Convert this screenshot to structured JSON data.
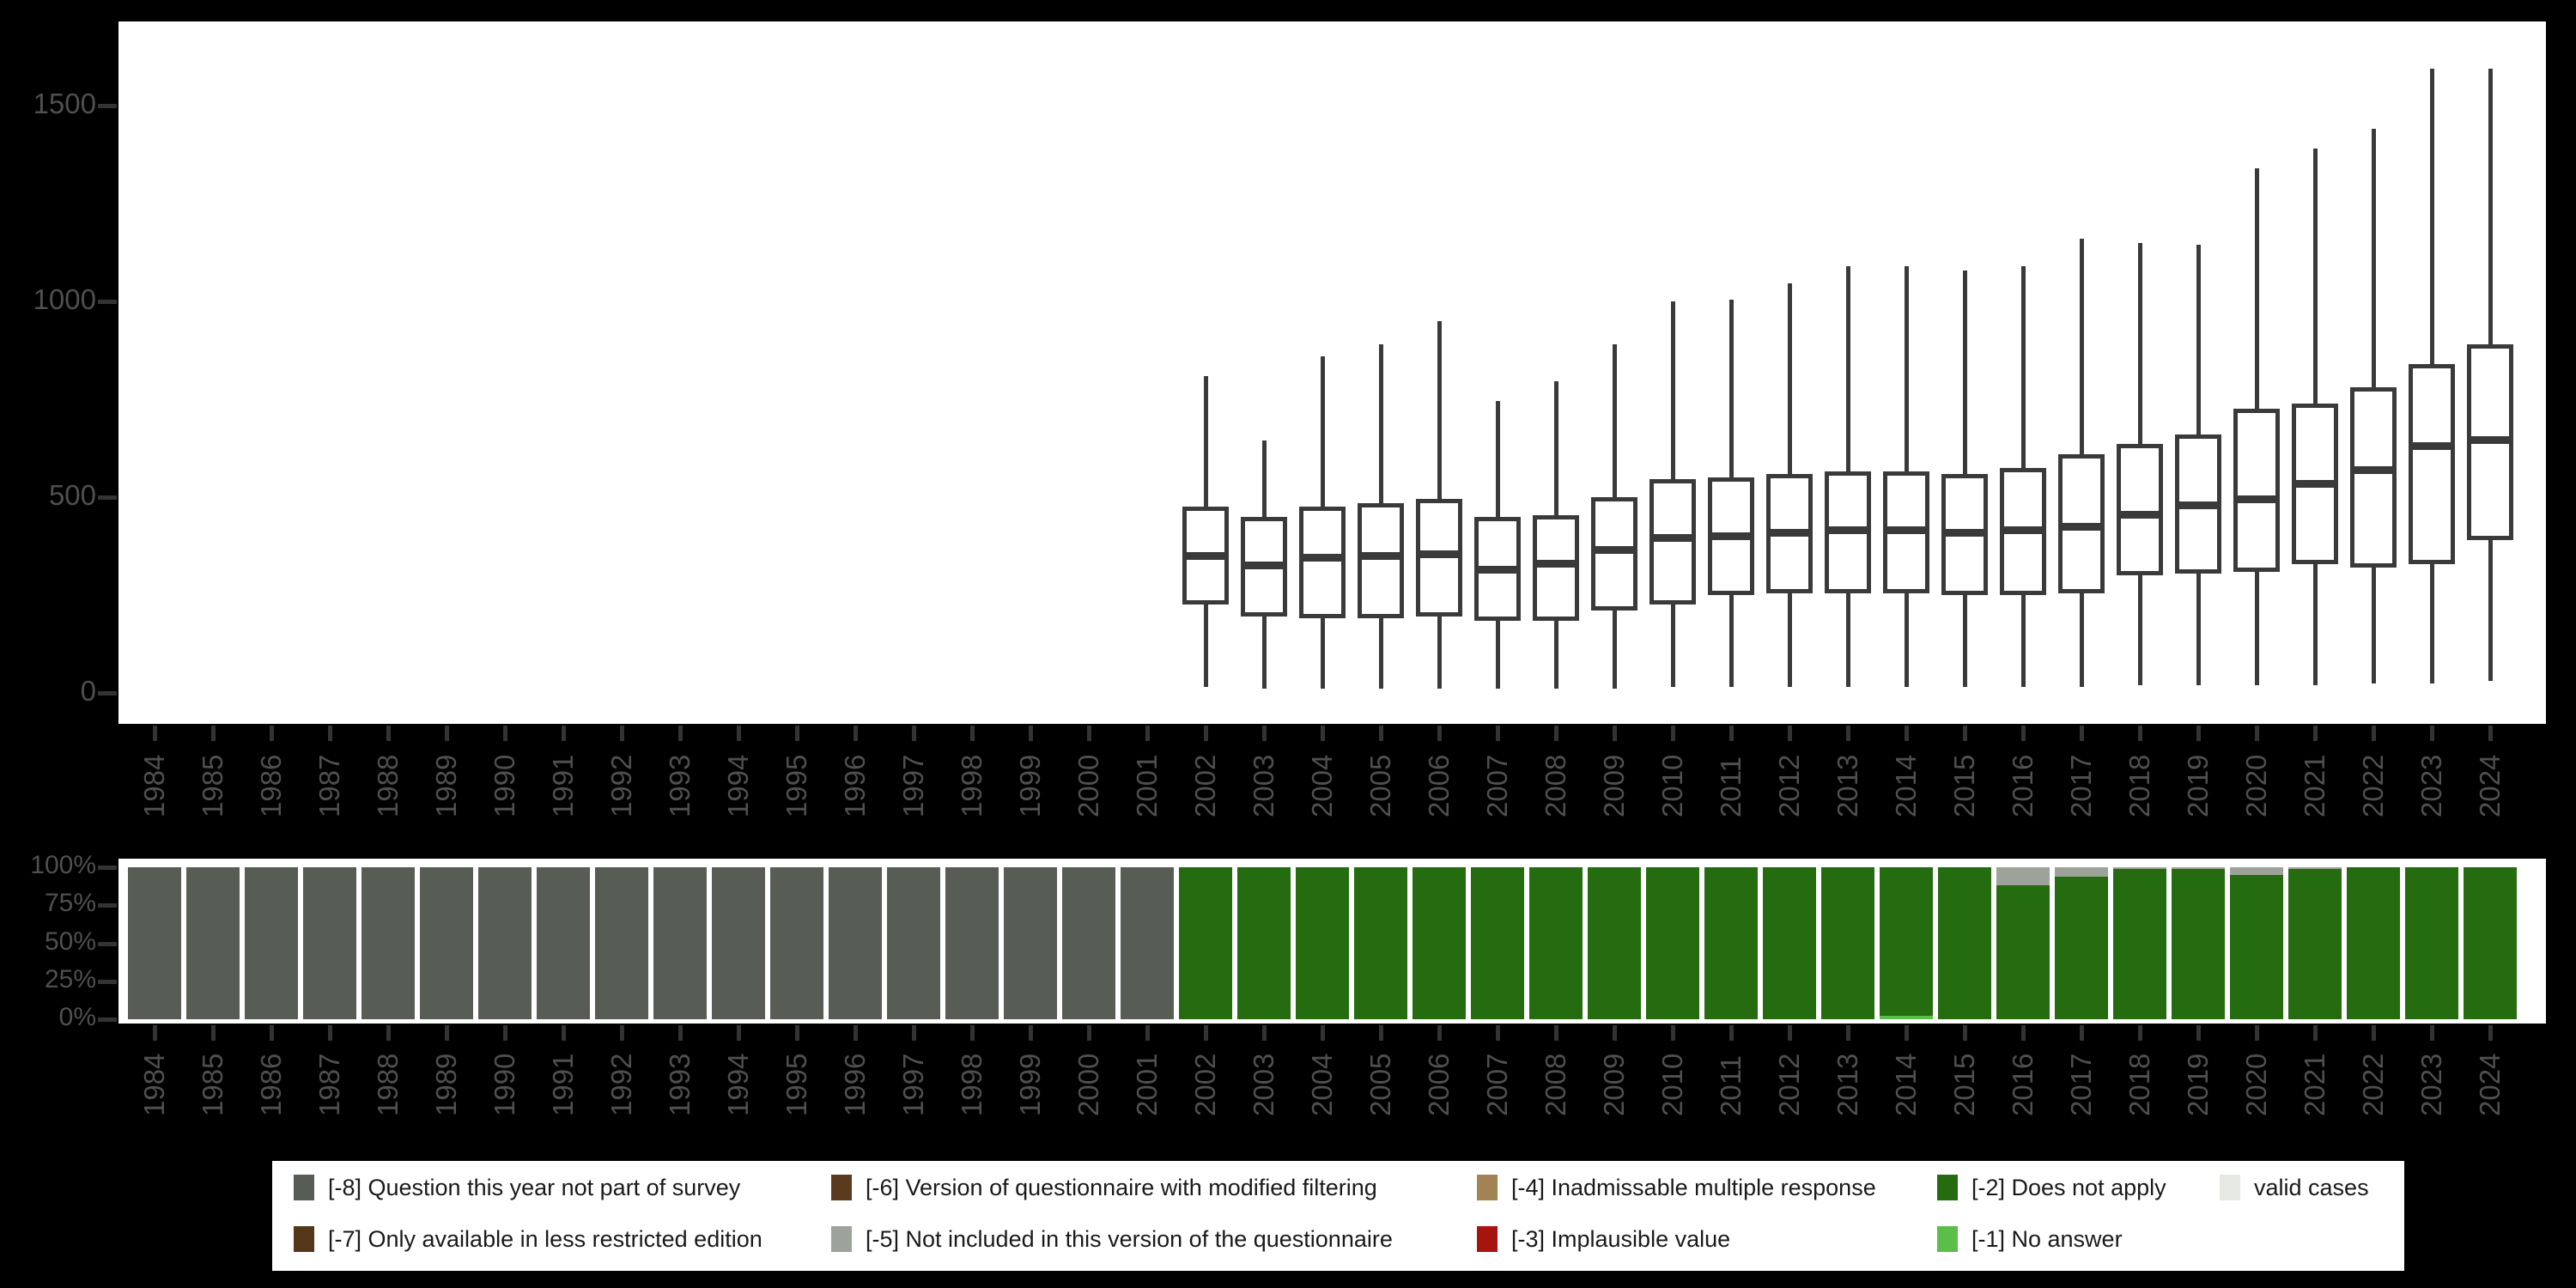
{
  "colors": {
    "background": "#000000",
    "plot_background": "#ffffff",
    "box_stroke": "#3a3a3a",
    "axis_text": "#4f4f4f",
    "tick_mark": "#333333",
    "legend_background": "#ffffff",
    "legend_text": "#1a1a1a"
  },
  "chart_data": [
    {
      "type": "boxplot",
      "title": "",
      "xlabel": "",
      "ylabel": "",
      "grid": false,
      "categories": [
        "1984",
        "1985",
        "1986",
        "1987",
        "1988",
        "1989",
        "1990",
        "1991",
        "1992",
        "1993",
        "1994",
        "1995",
        "1996",
        "1997",
        "1998",
        "1999",
        "2000",
        "2001",
        "2002",
        "2003",
        "2004",
        "2005",
        "2006",
        "2007",
        "2008",
        "2009",
        "2010",
        "2011",
        "2012",
        "2013",
        "2014",
        "2015",
        "2016",
        "2017",
        "2018",
        "2019",
        "2020",
        "2021",
        "2022",
        "2023",
        "2024"
      ],
      "yticks": [
        0,
        500,
        1000,
        1500
      ],
      "ylim": [
        -90,
        1700
      ],
      "boxes": [
        {
          "year": "2002",
          "low": 15,
          "q1": 225,
          "median": 350,
          "q3": 475,
          "high": 810
        },
        {
          "year": "2003",
          "low": 10,
          "q1": 195,
          "median": 325,
          "q3": 450,
          "high": 645
        },
        {
          "year": "2004",
          "low": 10,
          "q1": 190,
          "median": 345,
          "q3": 475,
          "high": 860
        },
        {
          "year": "2005",
          "low": 10,
          "q1": 190,
          "median": 350,
          "q3": 485,
          "high": 890
        },
        {
          "year": "2006",
          "low": 10,
          "q1": 195,
          "median": 355,
          "q3": 495,
          "high": 950
        },
        {
          "year": "2007",
          "low": 10,
          "q1": 185,
          "median": 315,
          "q3": 450,
          "high": 745
        },
        {
          "year": "2008",
          "low": 10,
          "q1": 185,
          "median": 330,
          "q3": 455,
          "high": 795
        },
        {
          "year": "2009",
          "low": 10,
          "q1": 210,
          "median": 365,
          "q3": 500,
          "high": 890
        },
        {
          "year": "2010",
          "low": 15,
          "q1": 225,
          "median": 395,
          "q3": 545,
          "high": 1000
        },
        {
          "year": "2011",
          "low": 15,
          "q1": 250,
          "median": 400,
          "q3": 550,
          "high": 1005
        },
        {
          "year": "2012",
          "low": 15,
          "q1": 255,
          "median": 410,
          "q3": 560,
          "high": 1045
        },
        {
          "year": "2013",
          "low": 15,
          "q1": 255,
          "median": 415,
          "q3": 565,
          "high": 1090
        },
        {
          "year": "2014",
          "low": 15,
          "q1": 255,
          "median": 415,
          "q3": 565,
          "high": 1090
        },
        {
          "year": "2015",
          "low": 15,
          "q1": 250,
          "median": 410,
          "q3": 560,
          "high": 1080
        },
        {
          "year": "2016",
          "low": 15,
          "q1": 250,
          "median": 415,
          "q3": 575,
          "high": 1090
        },
        {
          "year": "2017",
          "low": 15,
          "q1": 255,
          "median": 425,
          "q3": 610,
          "high": 1160
        },
        {
          "year": "2018",
          "low": 20,
          "q1": 300,
          "median": 455,
          "q3": 635,
          "high": 1150
        },
        {
          "year": "2019",
          "low": 20,
          "q1": 305,
          "median": 480,
          "q3": 660,
          "high": 1145
        },
        {
          "year": "2020",
          "low": 20,
          "q1": 310,
          "median": 495,
          "q3": 725,
          "high": 1340
        },
        {
          "year": "2021",
          "low": 20,
          "q1": 330,
          "median": 535,
          "q3": 740,
          "high": 1390
        },
        {
          "year": "2022",
          "low": 25,
          "q1": 320,
          "median": 570,
          "q3": 780,
          "high": 1440
        },
        {
          "year": "2023",
          "low": 25,
          "q1": 330,
          "median": 630,
          "q3": 840,
          "high": 1595
        },
        {
          "year": "2024",
          "low": 30,
          "q1": 390,
          "median": 645,
          "q3": 890,
          "high": 1595
        }
      ]
    },
    {
      "type": "bar",
      "subtype": "stacked_percent",
      "title": "",
      "xlabel": "",
      "ylabel": "",
      "yticks": [
        "0%",
        "25%",
        "50%",
        "75%",
        "100%"
      ],
      "ylim": [
        0,
        100
      ],
      "categories": [
        "1984",
        "1985",
        "1986",
        "1987",
        "1988",
        "1989",
        "1990",
        "1991",
        "1992",
        "1993",
        "1994",
        "1995",
        "1996",
        "1997",
        "1998",
        "1999",
        "2000",
        "2001",
        "2002",
        "2003",
        "2004",
        "2005",
        "2006",
        "2007",
        "2008",
        "2009",
        "2010",
        "2011",
        "2012",
        "2013",
        "2014",
        "2015",
        "2016",
        "2017",
        "2018",
        "2019",
        "2020",
        "2021",
        "2022",
        "2023",
        "2024"
      ],
      "bars": [
        {
          "year": "1984",
          "segments": [
            [
              "-8",
              100
            ]
          ]
        },
        {
          "year": "1985",
          "segments": [
            [
              "-8",
              100
            ]
          ]
        },
        {
          "year": "1986",
          "segments": [
            [
              "-8",
              100
            ]
          ]
        },
        {
          "year": "1987",
          "segments": [
            [
              "-8",
              100
            ]
          ]
        },
        {
          "year": "1988",
          "segments": [
            [
              "-8",
              100
            ]
          ]
        },
        {
          "year": "1989",
          "segments": [
            [
              "-8",
              100
            ]
          ]
        },
        {
          "year": "1990",
          "segments": [
            [
              "-8",
              100
            ]
          ]
        },
        {
          "year": "1991",
          "segments": [
            [
              "-8",
              100
            ]
          ]
        },
        {
          "year": "1992",
          "segments": [
            [
              "-8",
              100
            ]
          ]
        },
        {
          "year": "1993",
          "segments": [
            [
              "-8",
              100
            ]
          ]
        },
        {
          "year": "1994",
          "segments": [
            [
              "-8",
              100
            ]
          ]
        },
        {
          "year": "1995",
          "segments": [
            [
              "-8",
              100
            ]
          ]
        },
        {
          "year": "1996",
          "segments": [
            [
              "-8",
              100
            ]
          ]
        },
        {
          "year": "1997",
          "segments": [
            [
              "-8",
              100
            ]
          ]
        },
        {
          "year": "1998",
          "segments": [
            [
              "-8",
              100
            ]
          ]
        },
        {
          "year": "1999",
          "segments": [
            [
              "-8",
              100
            ]
          ]
        },
        {
          "year": "2000",
          "segments": [
            [
              "-8",
              100
            ]
          ]
        },
        {
          "year": "2001",
          "segments": [
            [
              "-8",
              100
            ]
          ]
        },
        {
          "year": "2002",
          "segments": [
            [
              "-2",
              100
            ]
          ]
        },
        {
          "year": "2003",
          "segments": [
            [
              "-2",
              100
            ]
          ]
        },
        {
          "year": "2004",
          "segments": [
            [
              "-2",
              100
            ]
          ]
        },
        {
          "year": "2005",
          "segments": [
            [
              "-2",
              100
            ]
          ]
        },
        {
          "year": "2006",
          "segments": [
            [
              "-2",
              100
            ]
          ]
        },
        {
          "year": "2007",
          "segments": [
            [
              "-2",
              100
            ]
          ]
        },
        {
          "year": "2008",
          "segments": [
            [
              "-2",
              100
            ]
          ]
        },
        {
          "year": "2009",
          "segments": [
            [
              "-2",
              100
            ]
          ]
        },
        {
          "year": "2010",
          "segments": [
            [
              "-2",
              100
            ]
          ]
        },
        {
          "year": "2011",
          "segments": [
            [
              "-2",
              100
            ]
          ]
        },
        {
          "year": "2012",
          "segments": [
            [
              "-2",
              100
            ]
          ]
        },
        {
          "year": "2013",
          "segments": [
            [
              "-2",
              100
            ]
          ]
        },
        {
          "year": "2014",
          "segments": [
            [
              "-1",
              2
            ],
            [
              "-2",
              98
            ]
          ]
        },
        {
          "year": "2015",
          "segments": [
            [
              "-2",
              100
            ]
          ]
        },
        {
          "year": "2016",
          "segments": [
            [
              "-2",
              88
            ],
            [
              "-5",
              12
            ]
          ]
        },
        {
          "year": "2017",
          "segments": [
            [
              "-2",
              94
            ],
            [
              "-5",
              6
            ]
          ]
        },
        {
          "year": "2018",
          "segments": [
            [
              "-2",
              99
            ],
            [
              "-5",
              1
            ]
          ]
        },
        {
          "year": "2019",
          "segments": [
            [
              "-2",
              99
            ],
            [
              "-5",
              1
            ]
          ]
        },
        {
          "year": "2020",
          "segments": [
            [
              "-2",
              95
            ],
            [
              "-5",
              5
            ]
          ]
        },
        {
          "year": "2021",
          "segments": [
            [
              "-2",
              99
            ],
            [
              "-5",
              1
            ]
          ]
        },
        {
          "year": "2022",
          "segments": [
            [
              "-2",
              100
            ]
          ]
        },
        {
          "year": "2023",
          "segments": [
            [
              "-2",
              100
            ]
          ]
        },
        {
          "year": "2024",
          "segments": [
            [
              "-2",
              100
            ]
          ]
        }
      ]
    }
  ],
  "legend": {
    "items": [
      {
        "code": "-8",
        "label": "[-8] Question this year not part of survey",
        "color": "#575C54",
        "col": 0,
        "row": 0
      },
      {
        "code": "-7",
        "label": "[-7] Only available in less restricted edition",
        "color": "#543619",
        "col": 0,
        "row": 1
      },
      {
        "code": "-6",
        "label": "[-6] Version of questionnaire with modified filtering",
        "color": "#5C3A1D",
        "col": 1,
        "row": 0
      },
      {
        "code": "-5",
        "label": "[-5] Not included in this version of the questionnaire",
        "color": "#9EA399",
        "col": 1,
        "row": 1
      },
      {
        "code": "-4",
        "label": "[-4] Inadmissable multiple response",
        "color": "#A38353",
        "col": 2,
        "row": 0
      },
      {
        "code": "-3",
        "label": "[-3] Implausible value",
        "color": "#A61410",
        "col": 2,
        "row": 1
      },
      {
        "code": "-2",
        "label": "[-2] Does not apply",
        "color": "#256B10",
        "col": 3,
        "row": 0
      },
      {
        "code": "-1",
        "label": "[-1] No answer",
        "color": "#5BBE49",
        "col": 3,
        "row": 1
      },
      {
        "code": "valid",
        "label": "valid cases",
        "color": "#E5E9E2",
        "col": 4,
        "row": 0
      }
    ]
  }
}
